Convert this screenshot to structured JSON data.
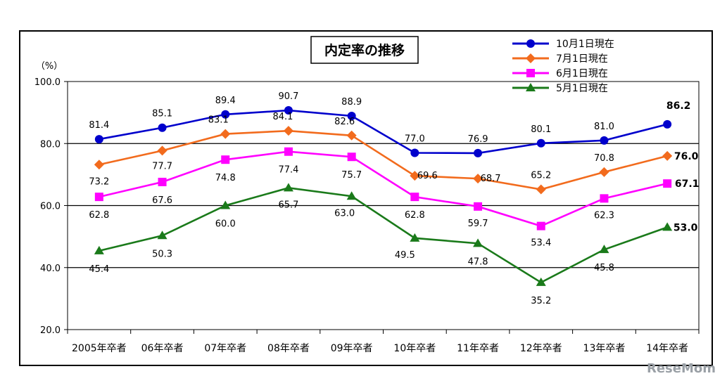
{
  "chart_data": {
    "type": "line",
    "title": "内定率の推移",
    "ylabel": "（%）",
    "ylim": [
      20,
      100
    ],
    "yticks": [
      "20.0",
      "40.0",
      "60.0",
      "80.0",
      "100.0"
    ],
    "grid": "horizontal major lines",
    "legend_position": "top-right",
    "categories": [
      "2005年卒者",
      "06年卒者",
      "07年卒者",
      "08年卒者",
      "09年卒者",
      "10年卒者",
      "11年卒者",
      "12年卒者",
      "13年卒者",
      "14年卒者"
    ],
    "series": [
      {
        "name": "10月1日現在",
        "color": "#0000cc",
        "marker": "circle",
        "values": [
          81.4,
          85.1,
          89.4,
          90.7,
          88.9,
          77.0,
          76.9,
          80.1,
          81.0,
          86.2
        ],
        "labels": [
          "81.4",
          "85.1",
          "89.4",
          "90.7",
          "88.9",
          "77.0",
          "76.9",
          "80.1",
          "81.0",
          "86.2"
        ]
      },
      {
        "name": "7月1日現在",
        "color": "#f26b1d",
        "marker": "diamond",
        "values": [
          73.2,
          77.7,
          83.1,
          84.1,
          82.6,
          69.6,
          68.7,
          65.2,
          70.8,
          76.0
        ],
        "labels": [
          "73.2",
          "77.7",
          "83.1",
          "84.1",
          "82.6",
          "69.6",
          "68.7",
          "65.2",
          "70.8",
          "76.0"
        ]
      },
      {
        "name": "6月1日現在",
        "color": "#ff00ff",
        "marker": "square",
        "values": [
          62.8,
          67.6,
          74.8,
          77.4,
          75.7,
          62.8,
          59.7,
          53.4,
          62.3,
          67.1
        ],
        "labels": [
          "62.8",
          "67.6",
          "74.8",
          "77.4",
          "75.7",
          "62.8",
          "59.7",
          "53.4",
          "62.3",
          "67.1"
        ]
      },
      {
        "name": "5月1日現在",
        "color": "#1a7a1a",
        "marker": "triangle",
        "values": [
          45.4,
          50.3,
          60.0,
          65.7,
          63.0,
          49.5,
          47.8,
          35.2,
          45.8,
          53.0
        ],
        "labels": [
          "45.4",
          "50.3",
          "60.0",
          "65.7",
          "63.0",
          "49.5",
          "47.8",
          "35.2",
          "45.8",
          "53.0"
        ]
      }
    ]
  },
  "watermark": "ReseMom"
}
